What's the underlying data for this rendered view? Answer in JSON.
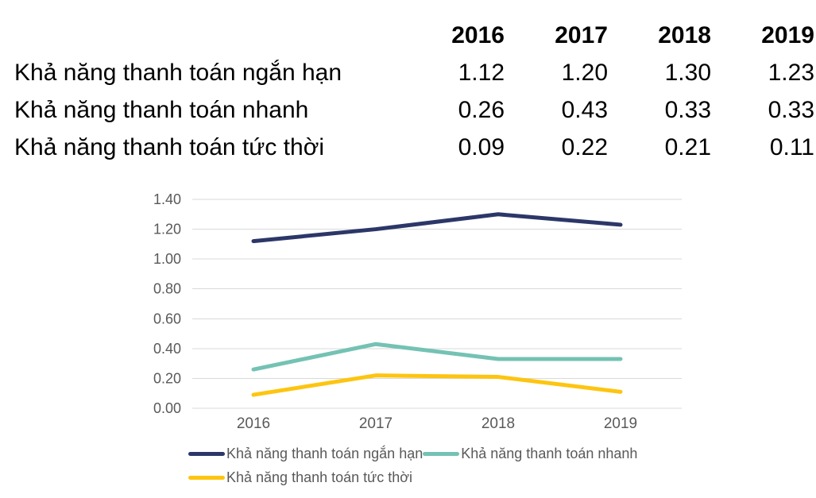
{
  "table": {
    "years": [
      "2016",
      "2017",
      "2018",
      "2019"
    ],
    "rows": [
      {
        "label": "Khả năng thanh toán ngắn hạn",
        "values": [
          "1.12",
          "1.20",
          "1.30",
          "1.23"
        ]
      },
      {
        "label": "Khả năng thanh toán nhanh",
        "values": [
          "0.26",
          "0.43",
          "0.33",
          "0.33"
        ]
      },
      {
        "label": "Khả năng thanh toán tức thời",
        "values": [
          "0.09",
          "0.22",
          "0.21",
          "0.11"
        ]
      }
    ]
  },
  "chart_data": {
    "type": "line",
    "categories": [
      "2016",
      "2017",
      "2018",
      "2019"
    ],
    "series": [
      {
        "name": "Khả năng thanh toán ngắn hạn",
        "color": "#2C3768",
        "values": [
          1.12,
          1.2,
          1.3,
          1.23
        ]
      },
      {
        "name": "Khả năng thanh toán nhanh",
        "color": "#74C2B4",
        "values": [
          0.26,
          0.43,
          0.33,
          0.33
        ]
      },
      {
        "name": "Khả năng thanh toán tức thời",
        "color": "#FDC511",
        "values": [
          0.09,
          0.22,
          0.21,
          0.11
        ]
      }
    ],
    "title": "",
    "xlabel": "",
    "ylabel": "",
    "ylim": [
      0.0,
      1.4
    ],
    "ytick_step": 0.2,
    "ytick_labels": [
      "0.00",
      "0.20",
      "0.40",
      "0.60",
      "0.80",
      "1.00",
      "1.20",
      "1.40"
    ],
    "grid": true,
    "legend_position": "bottom",
    "line_width": 5,
    "colors": {
      "gridline": "#D9D9D9",
      "axis_text": "#595959",
      "table_text": "#000000"
    }
  }
}
